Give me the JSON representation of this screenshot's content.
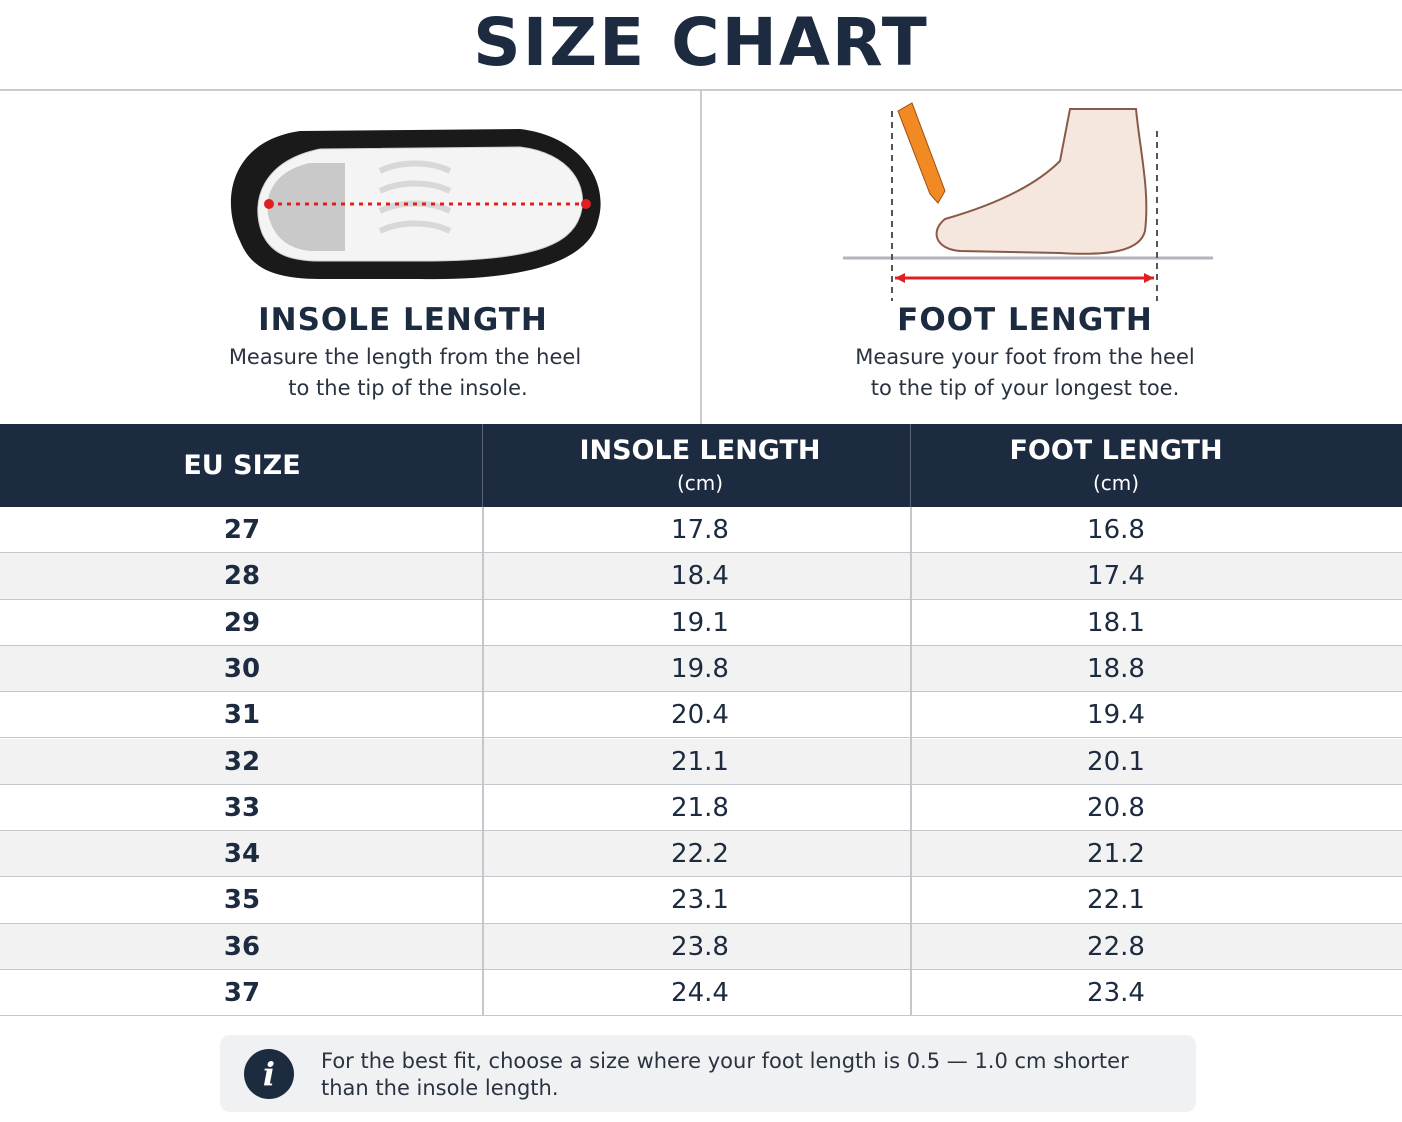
{
  "header": {
    "title": "SIZE CHART"
  },
  "panels": [
    {
      "title": "INSOLE LENGTH",
      "lines": [
        "Measure the length from the heel",
        "to the tip of the insole."
      ]
    },
    {
      "title": "FOOT LENGTH",
      "lines": [
        "Measure your foot from the heel",
        "to the tip of your longest toe."
      ]
    }
  ],
  "table": {
    "headers": [
      {
        "label": "EU SIZE"
      },
      {
        "label": "INSOLE LENGTH",
        "unit": "(cm)"
      },
      {
        "label": "FOOT LENGTH",
        "unit": "(cm)"
      }
    ],
    "rows": [
      [
        "27",
        "17.8",
        "16.8"
      ],
      [
        "28",
        "18.4",
        "17.4"
      ],
      [
        "29",
        "19.1",
        "18.1"
      ],
      [
        "30",
        "19.8",
        "18.8"
      ],
      [
        "31",
        "20.4",
        "19.4"
      ],
      [
        "32",
        "21.1",
        "20.1"
      ],
      [
        "33",
        "21.8",
        "20.8"
      ],
      [
        "34",
        "22.2",
        "21.2"
      ],
      [
        "35",
        "23.1",
        "22.1"
      ],
      [
        "36",
        "23.8",
        "22.8"
      ],
      [
        "37",
        "24.4",
        "23.4"
      ]
    ]
  },
  "note": {
    "icon": "i",
    "lines": [
      "For the best fit, choose a size where your foot length is 0.5 — 1.0 cm shorter",
      "than the insole length."
    ]
  }
}
